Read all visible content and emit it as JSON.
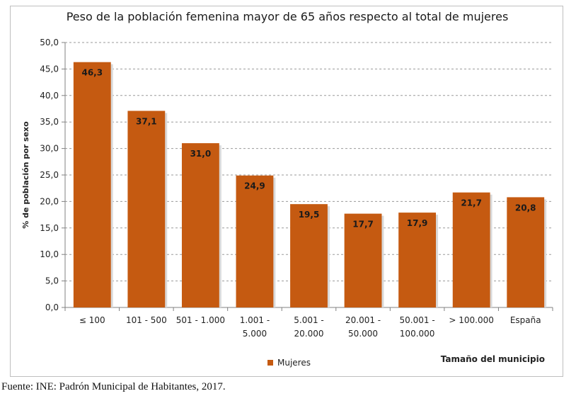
{
  "chart_data": {
    "type": "bar",
    "title": "Peso de la población femenina mayor de 65 años respecto al total de mujeres",
    "xlabel": "Tamaño del municipio",
    "ylabel": "% de población por sexo",
    "ylim": [
      0,
      50
    ],
    "yticks": [
      "0,0",
      "5,0",
      "10,0",
      "15,0",
      "20,0",
      "25,0",
      "30,0",
      "35,0",
      "40,0",
      "45,0",
      "50,0"
    ],
    "grid": true,
    "legend_position": "bottom",
    "categories": [
      [
        "≤ 100"
      ],
      [
        "101 - 500"
      ],
      [
        "501 - 1.000"
      ],
      [
        "1.001 -",
        "5.000"
      ],
      [
        "5.001 -",
        "20.000"
      ],
      [
        "20.001 -",
        "50.000"
      ],
      [
        "50.001 -",
        "100.000"
      ],
      [
        "> 100.000"
      ],
      [
        "España"
      ]
    ],
    "series": [
      {
        "name": "Mujeres",
        "color": "#c55a11",
        "values": [
          46.3,
          37.1,
          31.0,
          24.9,
          19.5,
          17.7,
          17.9,
          21.7,
          20.8
        ],
        "labels": [
          "46,3",
          "37,1",
          "31,0",
          "24,9",
          "19,5",
          "17,7",
          "17,9",
          "21,7",
          "20,8"
        ]
      }
    ]
  },
  "source": "Fuente: INE: Padrón Municipal de Habitantes, 2017."
}
